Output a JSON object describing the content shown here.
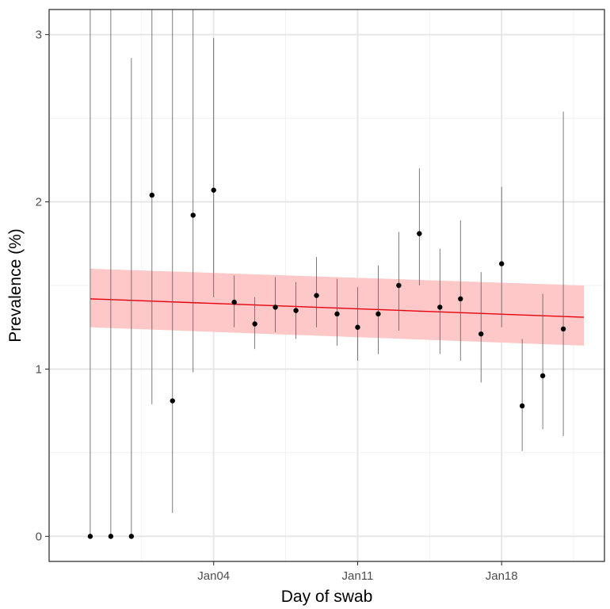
{
  "chart_data": {
    "type": "scatter",
    "title": "",
    "xlabel": "Day of swab",
    "ylabel": "Prevalence (%)",
    "x_ticks": [
      {
        "date": "2021-01-04",
        "label": "Jan04"
      },
      {
        "date": "2021-01-11",
        "label": "Jan11"
      },
      {
        "date": "2021-01-18",
        "label": "Jan18"
      }
    ],
    "y_ticks": [
      0,
      1,
      2,
      3
    ],
    "xlim": [
      "2020-12-27",
      "2021-01-23"
    ],
    "ylim": [
      -0.15,
      3.15
    ],
    "grid": true,
    "points": [
      {
        "x": "2020-12-29",
        "y": 0.0,
        "lower": 0.0,
        "upper": 3.15
      },
      {
        "x": "2020-12-30",
        "y": 0.0,
        "lower": 0.0,
        "upper": 3.15
      },
      {
        "x": "2020-12-31",
        "y": 0.0,
        "lower": 0.0,
        "upper": 2.86
      },
      {
        "x": "2021-01-01",
        "y": 2.04,
        "lower": 0.79,
        "upper": 3.15
      },
      {
        "x": "2021-01-02",
        "y": 0.81,
        "lower": 0.14,
        "upper": 3.15
      },
      {
        "x": "2021-01-03",
        "y": 1.92,
        "lower": 0.98,
        "upper": 3.15
      },
      {
        "x": "2021-01-04",
        "y": 2.07,
        "lower": 1.43,
        "upper": 2.98
      },
      {
        "x": "2021-01-05",
        "y": 1.4,
        "lower": 1.25,
        "upper": 1.56
      },
      {
        "x": "2021-01-06",
        "y": 1.27,
        "lower": 1.12,
        "upper": 1.43
      },
      {
        "x": "2021-01-07",
        "y": 1.37,
        "lower": 1.22,
        "upper": 1.55
      },
      {
        "x": "2021-01-08",
        "y": 1.35,
        "lower": 1.18,
        "upper": 1.52
      },
      {
        "x": "2021-01-09",
        "y": 1.44,
        "lower": 1.25,
        "upper": 1.67
      },
      {
        "x": "2021-01-10",
        "y": 1.33,
        "lower": 1.14,
        "upper": 1.54
      },
      {
        "x": "2021-01-11",
        "y": 1.25,
        "lower": 1.05,
        "upper": 1.49
      },
      {
        "x": "2021-01-12",
        "y": 1.33,
        "lower": 1.09,
        "upper": 1.62
      },
      {
        "x": "2021-01-13",
        "y": 1.5,
        "lower": 1.23,
        "upper": 1.82
      },
      {
        "x": "2021-01-14",
        "y": 1.81,
        "lower": 1.5,
        "upper": 2.2
      },
      {
        "x": "2021-01-15",
        "y": 1.37,
        "lower": 1.09,
        "upper": 1.72
      },
      {
        "x": "2021-01-16",
        "y": 1.42,
        "lower": 1.05,
        "upper": 1.89
      },
      {
        "x": "2021-01-17",
        "y": 1.21,
        "lower": 0.92,
        "upper": 1.58
      },
      {
        "x": "2021-01-18",
        "y": 1.63,
        "lower": 1.25,
        "upper": 2.09
      },
      {
        "x": "2021-01-19",
        "y": 0.78,
        "lower": 0.51,
        "upper": 1.18
      },
      {
        "x": "2021-01-20",
        "y": 0.96,
        "lower": 0.64,
        "upper": 1.45
      },
      {
        "x": "2021-01-21",
        "y": 1.24,
        "lower": 0.6,
        "upper": 2.54
      }
    ],
    "trend": {
      "x": [
        "2020-12-29",
        "2021-01-22"
      ],
      "y": [
        1.42,
        1.31
      ],
      "lower": [
        1.25,
        1.14
      ],
      "upper": [
        1.6,
        1.5
      ],
      "line_color": "#e8000b",
      "band_color": "#ffc8c8"
    },
    "point_color": "#000000"
  }
}
